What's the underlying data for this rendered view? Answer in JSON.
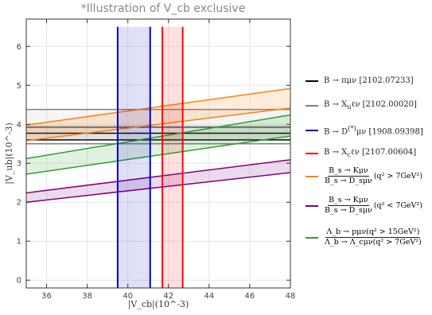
{
  "title": "*Illustration of V_cb exclusive",
  "chart_data": {
    "type": "band-plot",
    "title": "*Illustration of V_cb exclusive",
    "xlabel": "|V_cb|(10^-3)",
    "ylabel": "|V_ub|(10^-3)",
    "xlim": [
      35,
      48
    ],
    "ylim": [
      -0.2,
      6.7
    ],
    "xticks": [
      36,
      38,
      40,
      42,
      44,
      46,
      48
    ],
    "yticks": [
      0,
      1,
      2,
      3,
      4,
      5,
      6
    ],
    "grid": true,
    "legend_position": "right",
    "horizontal_bands": [
      {
        "name": "B → πμν [2102.07233]",
        "color": "#000000",
        "central": 3.77,
        "low": 3.6,
        "high": 3.93
      },
      {
        "name": "B → X_u ℓν [2102.00020]",
        "color": "#808080",
        "central": 3.94,
        "low": 3.5,
        "high": 4.38
      }
    ],
    "vertical_bands": [
      {
        "name": "B → D^(*) μν [1908.09398]",
        "color": "#0000cc",
        "low": 39.5,
        "high": 41.1
      },
      {
        "name": "B → X_c ℓν [2107.00604]",
        "color": "#ff0000",
        "low": 41.7,
        "high": 42.7
      }
    ],
    "sloped_bands": [
      {
        "name": "Bs→Kμν / Bs→Dsμν (q² > 7 GeV²)",
        "color": "#ff7f0e",
        "x": [
          35,
          48
        ],
        "low": [
          3.58,
          4.42
        ],
        "high": [
          3.98,
          4.92
        ]
      },
      {
        "name": "Bs→Kμν / Bs→Dsμν (q² < 7 GeV²)",
        "color": "#800080",
        "x": [
          35,
          48
        ],
        "low": [
          2.0,
          2.76
        ],
        "high": [
          2.24,
          3.09
        ]
      },
      {
        "name": "Λb→pμν (q² > 15 GeV²) / Λb→Λcμν (q² > 7 GeV²)",
        "color": "#2ca02c",
        "x": [
          35,
          48
        ],
        "low": [
          2.72,
          3.7
        ],
        "high": [
          3.12,
          4.24
        ]
      }
    ]
  },
  "legend": {
    "items": [
      {
        "pre": "B → πμν ",
        "ref": "[2102.07233]",
        "color": "#000000"
      },
      {
        "pre": "B → X",
        "sub": "u",
        "post": "ℓν ",
        "ref": "[2102.00020]",
        "color": "#808080"
      },
      {
        "pre": "B → D",
        "sup": "(*)",
        "post": "μν ",
        "ref": "[1908.09398]",
        "color": "#0000cc"
      },
      {
        "pre": "B → X",
        "sub": "c",
        "post": "ℓν ",
        "ref": "[2107.00604]",
        "color": "#ff0000"
      }
    ],
    "fractions": [
      {
        "num": "B_s → Kμν",
        "den": "B_s → D_sμν",
        "cond": "(q² > 7GeV²)",
        "color": "#ff7f0e"
      },
      {
        "num": "B_s → Kμν",
        "den": "B_s → D_sμν",
        "cond": "(q² < 7GeV²)",
        "color": "#800080"
      },
      {
        "num": "Λ_b → pμν(q² > 15GeV²)",
        "den": "Λ_b → Λ_cμν(q² > 7GeV²)",
        "cond": "",
        "color": "#2ca02c"
      }
    ]
  }
}
